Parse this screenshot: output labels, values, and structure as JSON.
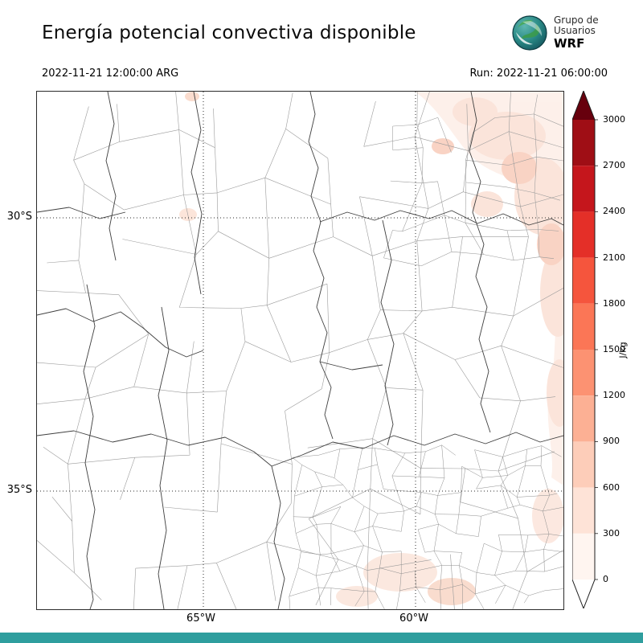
{
  "header": {
    "title": "Energía potencial convectiva disponible",
    "valid_time": "2022-11-21 12:00:00 ARG",
    "run_time": "Run: 2022-11-21 06:00:00",
    "logo": {
      "line1": "Grupo de",
      "line2": "Usuarios",
      "line3": "WRF"
    }
  },
  "map": {
    "x_ticks": [
      "65°W",
      "60°W"
    ],
    "y_ticks": [
      "30°S",
      "35°S"
    ]
  },
  "colorbar": {
    "unit": "J/kg",
    "ticks": [
      "0",
      "300",
      "600",
      "900",
      "1200",
      "1500",
      "1800",
      "2100",
      "2400",
      "2700",
      "3000"
    ],
    "colors": [
      "#fff5f0",
      "#fee3d7",
      "#fdcdb9",
      "#fcb094",
      "#fc9272",
      "#fb7656",
      "#f5553d",
      "#e42f28",
      "#c5161c",
      "#9f0e15"
    ],
    "over_color": "#67000d",
    "under_color": "#ffffff"
  },
  "accents": {
    "footer_bar_color": "#2f9e9e"
  }
}
